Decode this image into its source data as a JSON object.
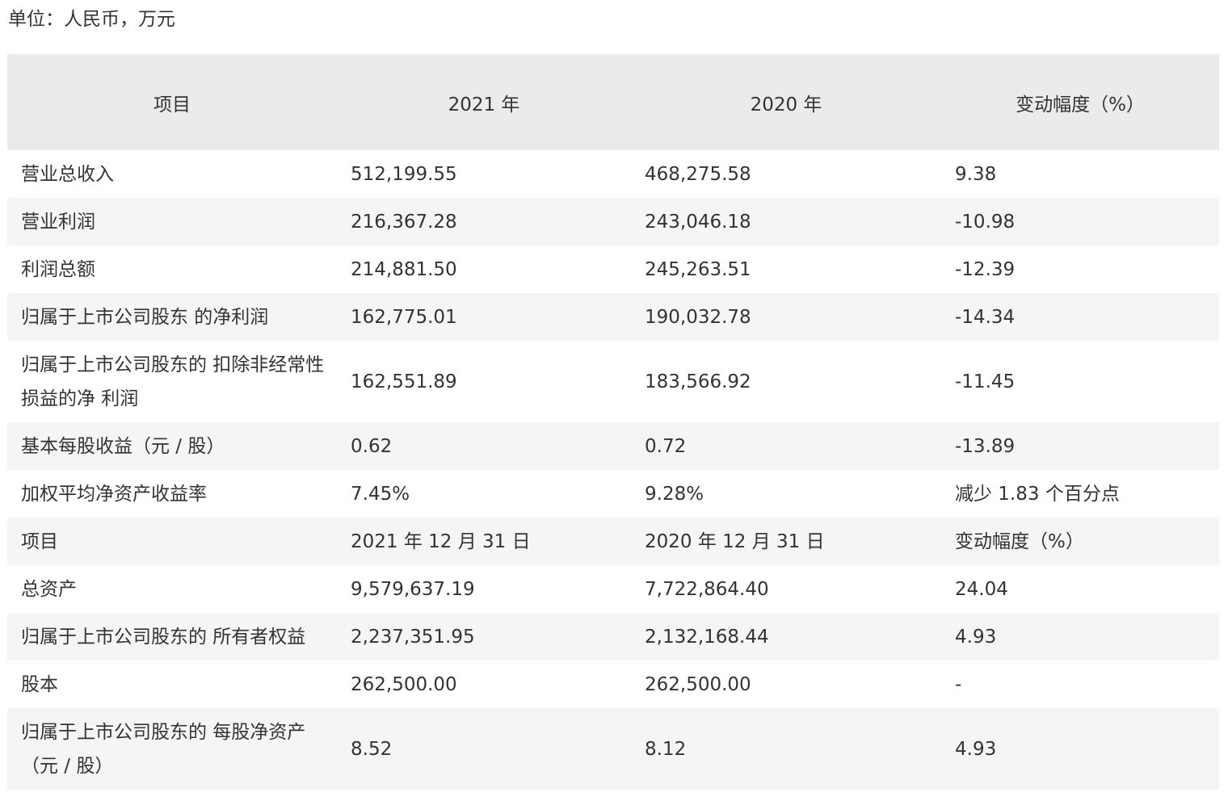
{
  "unit_label": "单位：人民币，万元",
  "headers": [
    "项目",
    "2021 年",
    "2020 年",
    "变动幅度（%）"
  ],
  "rows": [
    [
      "营业总收入",
      "512,199.55",
      "468,275.58",
      "9.38"
    ],
    [
      "营业利润",
      "216,367.28",
      "243,046.18",
      "-10.98"
    ],
    [
      "利润总额",
      "214,881.50",
      "245,263.51",
      "-12.39"
    ],
    [
      "归属于上市公司股东 的净利润",
      "162,775.01",
      "190,032.78",
      "-14.34"
    ],
    [
      "归属于上市公司股东的 扣除非经常性损益的净 利润",
      "162,551.89",
      "183,566.92",
      "-11.45"
    ],
    [
      "基本每股收益（元 / 股）",
      "0.62",
      "0.72",
      "-13.89"
    ],
    [
      "加权平均净资产收益率",
      "7.45%",
      "9.28%",
      "减少 1.83 个百分点"
    ],
    [
      "项目",
      "2021 年 12 月 31 日",
      "2020 年 12 月 31 日",
      "变动幅度（%）"
    ],
    [
      "总资产",
      "9,579,637.19",
      "7,722,864.40",
      "24.04"
    ],
    [
      "归属于上市公司股东的 所有者权益",
      "2,237,351.95",
      "2,132,168.44",
      "4.93"
    ],
    [
      "股本",
      "262,500.00",
      "262,500.00",
      "-"
    ],
    [
      "归属于上市公司股东的 每股净资产（元 / 股）",
      "8.52",
      "8.12",
      "4.93"
    ]
  ]
}
